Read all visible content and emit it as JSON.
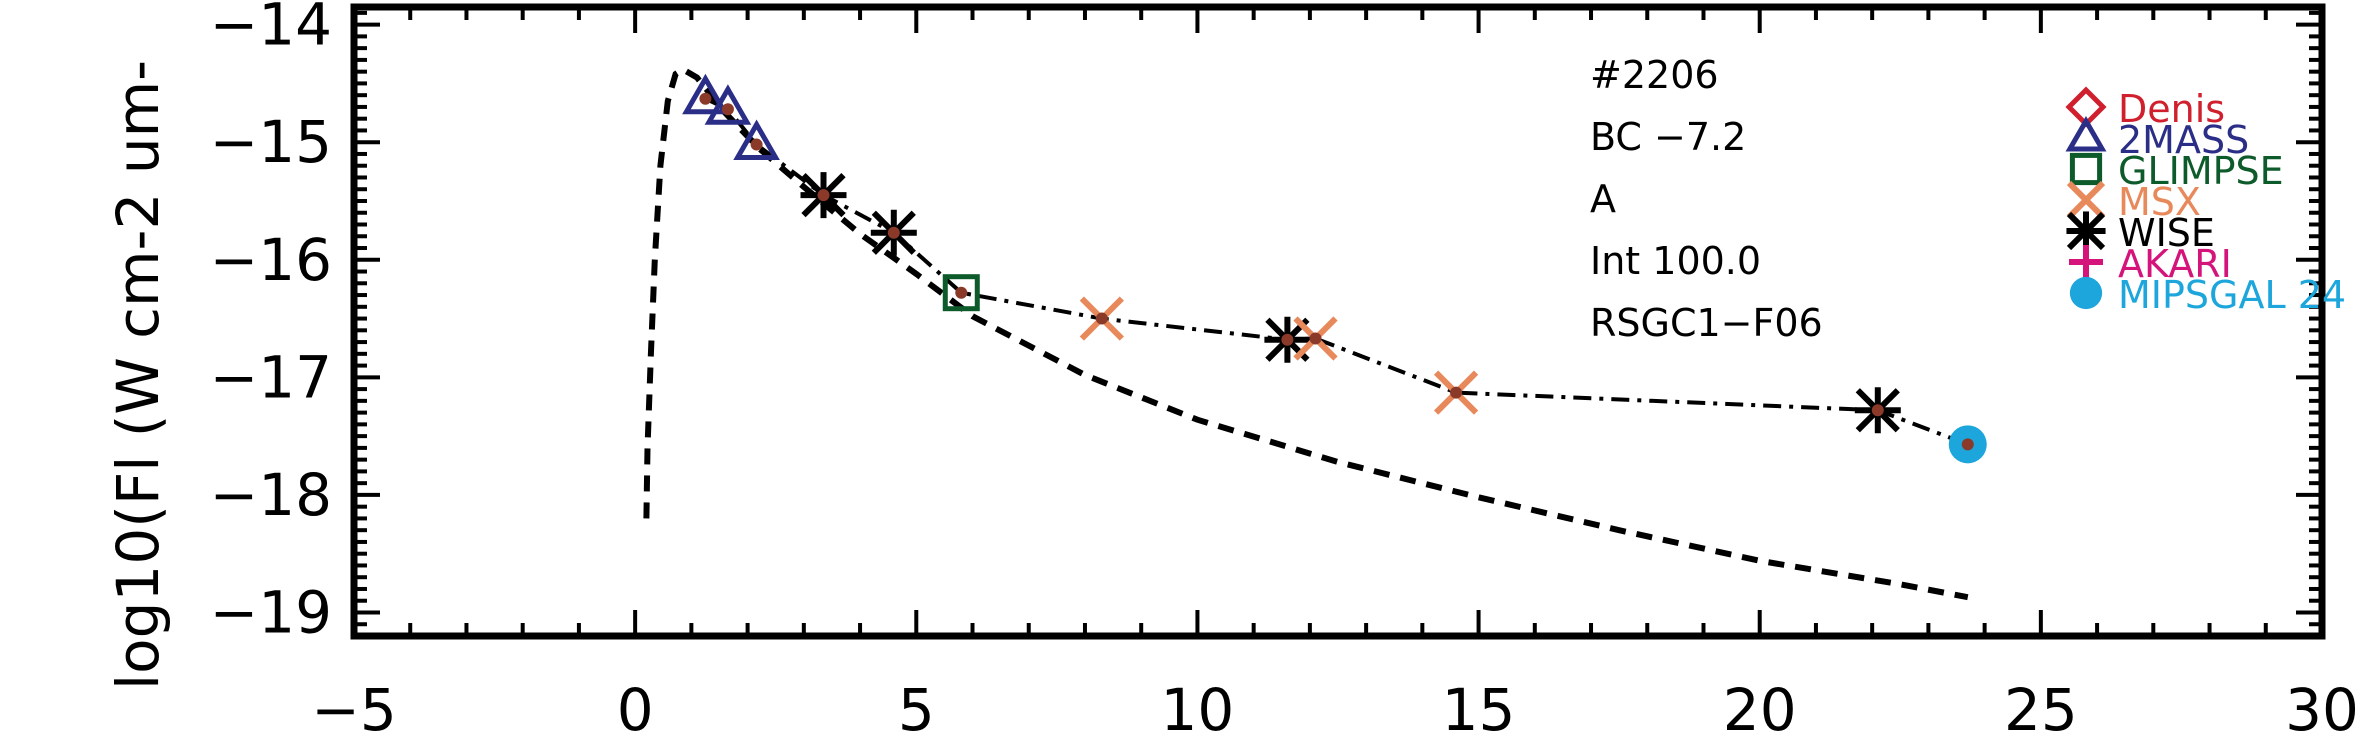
{
  "chart_data": {
    "type": "scatter",
    "ylabel": "log10(Fl (W cm-2 um-",
    "xlim": [
      -5,
      30
    ],
    "ylim": [
      -19.2,
      -13.85
    ],
    "x_ticks": [
      -5,
      0,
      5,
      10,
      15,
      20,
      25,
      30
    ],
    "x_tick_labels": [
      "−5",
      "0",
      "5",
      "10",
      "15",
      "20",
      "25",
      "30"
    ],
    "y_ticks": [
      -14,
      -15,
      -16,
      -17,
      -18,
      -19
    ],
    "y_tick_labels": [
      "−14",
      "−15",
      "−16",
      "−17",
      "−18",
      "−19"
    ],
    "annotations": [
      "#2206",
      "BC −7.2",
      "A",
      "Int 100.0",
      "RSGC1−F06"
    ],
    "legend": [
      {
        "label": "Denis",
        "marker": "diamond",
        "color": "#d0202e"
      },
      {
        "label": "2MASS",
        "marker": "triangle",
        "color": "#2b2e86"
      },
      {
        "label": "GLIMPSE",
        "marker": "square",
        "color": "#0d5a2a"
      },
      {
        "label": "MSX",
        "marker": "x",
        "color": "#e8895c"
      },
      {
        "label": "WISE",
        "marker": "asterisk",
        "color": "#000000"
      },
      {
        "label": "AKARI",
        "marker": "plus",
        "color": "#d4147a"
      },
      {
        "label": "MIPSGAL 24",
        "marker": "circle",
        "color": "#1da6dc"
      }
    ],
    "series": [
      {
        "marker": "triangle",
        "color": "#2b2e86",
        "points": [
          [
            1.25,
            -14.63
          ],
          [
            1.65,
            -14.72
          ],
          [
            2.16,
            -15.02
          ]
        ]
      },
      {
        "marker": "asterisk",
        "color": "#000000",
        "points": [
          [
            3.35,
            -15.45
          ],
          [
            4.6,
            -15.77
          ],
          [
            11.6,
            -16.68
          ],
          [
            22.1,
            -17.28
          ]
        ]
      },
      {
        "marker": "square",
        "color": "#0d5a2a",
        "points": [
          [
            5.8,
            -16.28
          ]
        ]
      },
      {
        "marker": "x",
        "color": "#e8895c",
        "points": [
          [
            8.3,
            -16.5
          ],
          [
            12.1,
            -16.67
          ],
          [
            14.6,
            -17.13
          ]
        ]
      },
      {
        "marker": "circle",
        "color": "#1da6dc",
        "points": [
          [
            23.7,
            -17.57
          ]
        ]
      }
    ],
    "model_sed": {
      "style": "dashdot",
      "color": "#000000",
      "points": [
        [
          1.25,
          -14.63
        ],
        [
          1.65,
          -14.72
        ],
        [
          2.16,
          -15.02
        ],
        [
          3.35,
          -15.45
        ],
        [
          4.6,
          -15.77
        ],
        [
          5.8,
          -16.28
        ],
        [
          8.3,
          -16.5
        ],
        [
          11.6,
          -16.68
        ],
        [
          12.1,
          -16.67
        ],
        [
          14.6,
          -17.13
        ],
        [
          22.1,
          -17.28
        ],
        [
          23.7,
          -17.57
        ]
      ]
    },
    "photosphere": {
      "style": "dashed",
      "color": "#000000",
      "points": [
        [
          0.2,
          -18.2
        ],
        [
          0.22,
          -17.6
        ],
        [
          0.28,
          -16.8
        ],
        [
          0.35,
          -16.0
        ],
        [
          0.45,
          -15.2
        ],
        [
          0.58,
          -14.65
        ],
        [
          0.72,
          -14.42
        ],
        [
          0.85,
          -14.38
        ],
        [
          1.1,
          -14.45
        ],
        [
          1.6,
          -14.75
        ],
        [
          2.2,
          -15.05
        ],
        [
          3.0,
          -15.38
        ],
        [
          4.0,
          -15.78
        ],
        [
          5.0,
          -16.12
        ],
        [
          6.0,
          -16.48
        ],
        [
          8.0,
          -16.98
        ],
        [
          10.0,
          -17.36
        ],
        [
          12.5,
          -17.72
        ],
        [
          15.0,
          -18.02
        ],
        [
          17.5,
          -18.3
        ],
        [
          20.0,
          -18.56
        ],
        [
          22.5,
          -18.76
        ],
        [
          23.7,
          -18.87
        ]
      ]
    }
  }
}
